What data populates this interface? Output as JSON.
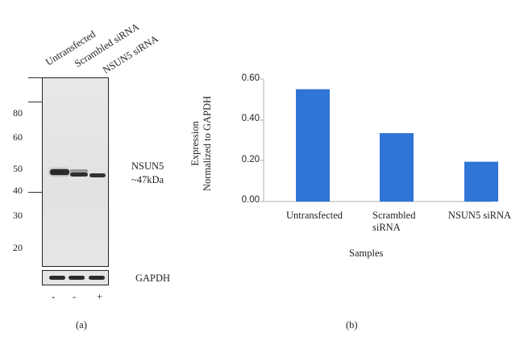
{
  "panel_a": {
    "lanes": [
      "Untransfected",
      "Scrambled siRNA",
      "NSUN5 siRNA"
    ],
    "mw_markers": [
      "80",
      "60",
      "50",
      "40",
      "30",
      "20"
    ],
    "target_label": "NSUN5",
    "target_size": "~47kDa",
    "loading_control": "GAPDH",
    "sirna_signs": [
      "-",
      "-",
      "+"
    ],
    "caption": "(a)"
  },
  "panel_b": {
    "caption": "(b)"
  },
  "chart_data": {
    "type": "bar",
    "categories": [
      "Untransfected",
      "Scrambled siRNA",
      "NSUN5 siRNA"
    ],
    "category_lines": [
      [
        "Untransfected"
      ],
      [
        "Scrambled",
        "siRNA"
      ],
      [
        "NSUN5 siRNA"
      ]
    ],
    "values": [
      0.55,
      0.335,
      0.195
    ],
    "ylabel_line1": "Expression",
    "ylabel_line2": "Normalized to GAPDH",
    "xlabel": "Samples",
    "yticks": [
      "0.00",
      "0.20",
      "0.40",
      "0.60"
    ],
    "ylim": [
      0,
      0.6
    ],
    "bar_color": "#2e75d6"
  }
}
